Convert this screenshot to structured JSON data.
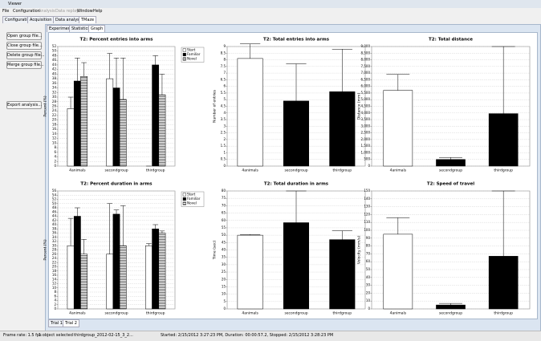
{
  "window_title": "Viewer",
  "menu": [
    "File",
    "Configuration",
    "Analysis",
    "Data replay",
    "Window",
    "Help"
  ],
  "main_tabs": [
    "Configuration",
    "Acquisition",
    "Data analysis",
    "TMaze"
  ],
  "sub_tabs": [
    "Experiment",
    "Statistics",
    "Graph"
  ],
  "buttons": [
    "Open group file...",
    "Close group file...",
    "Delete group file...",
    "Merge group file...",
    "Export analysis..."
  ],
  "trial_tabs": [
    "Trial 1",
    "Trial 2"
  ],
  "status": [
    "Frame rate: 1.5 fps",
    "1 object selected",
    "thirdgroup_2012-02-15_3_2...",
    "Started: 2/15/2012 3:27:23 PM, Duration: 00:00:57.2, Stopped: 2/15/2012 3:28:23 PM"
  ],
  "chart_data": [
    {
      "type": "bar",
      "title": "T2: Percent entries into arms",
      "y_label": "Percent (%)",
      "categories": [
        "4animals",
        "secondgroup",
        "thirdgroup"
      ],
      "series": [
        {
          "name": "Start",
          "color": "#ffffff",
          "values": [
            25,
            38,
            0
          ],
          "errors": [
            5,
            11,
            0
          ]
        },
        {
          "name": "Familiar",
          "color": "#000000",
          "values": [
            37,
            34,
            44
          ],
          "errors": [
            10,
            13,
            4
          ]
        },
        {
          "name": "Novel",
          "color": "#ffffff",
          "hatch": true,
          "values": [
            39,
            29,
            31
          ],
          "errors": [
            6,
            18,
            9
          ]
        }
      ],
      "ylim": [
        0,
        52
      ],
      "yticks": [
        0,
        2,
        4,
        6,
        8,
        10,
        12,
        14,
        16,
        18,
        20,
        22,
        24,
        26,
        28,
        30,
        32,
        34,
        36,
        38,
        40,
        42,
        44,
        46,
        48,
        50,
        52
      ],
      "grid": true,
      "legend": "outside-right"
    },
    {
      "type": "bar",
      "title": "T2: Total entries into arms",
      "y_label": "Number of entries",
      "categories": [
        "4animals",
        "secondgroup",
        "thirdgroup"
      ],
      "series": [
        {
          "colors": [
            "#ffffff",
            "#000000",
            "#000000"
          ],
          "values": [
            8.1,
            4.9,
            5.6
          ],
          "errors": [
            1.1,
            2.8,
            3.2
          ]
        }
      ],
      "ylim": [
        0,
        9
      ],
      "yticks": [
        0,
        0.5,
        1,
        1.5,
        2,
        2.5,
        3,
        3.5,
        4,
        4.5,
        5,
        5.5,
        6,
        6.5,
        7,
        7.5,
        8,
        8.5,
        9
      ],
      "grid": true
    },
    {
      "type": "bar",
      "title": "T2: Total distance",
      "y_label": "Distance (mm)",
      "categories": [
        "4animals",
        "secondgroup",
        "thirdgroup"
      ],
      "series": [
        {
          "colors": [
            "#ffffff",
            "#000000",
            "#000000"
          ],
          "values": [
            5700,
            500,
            3950
          ],
          "errors": [
            1200,
            150,
            5050
          ]
        }
      ],
      "ylim": [
        0,
        9000
      ],
      "yticks": [
        0,
        500,
        {
          "value": 1000,
          "label": "1,000"
        },
        {
          "value": 1500,
          "label": "1,500"
        },
        {
          "value": 2000,
          "label": "2,000"
        },
        {
          "value": 2500,
          "label": "2,500"
        },
        {
          "value": 3000,
          "label": "3,000"
        },
        {
          "value": 3500,
          "label": "3,500"
        },
        {
          "value": 4000,
          "label": "4,000"
        },
        {
          "value": 4500,
          "label": "4,500"
        },
        {
          "value": 5000,
          "label": "5,000"
        },
        {
          "value": 5500,
          "label": "5,500"
        },
        {
          "value": 6000,
          "label": "6,000"
        },
        {
          "value": 6500,
          "label": "6,500"
        },
        {
          "value": 7000,
          "label": "7,000"
        },
        {
          "value": 7500,
          "label": "7,500"
        },
        {
          "value": 8000,
          "label": "8,000"
        },
        {
          "value": 8500,
          "label": "8,500"
        },
        {
          "value": 9000,
          "label": "9,000"
        }
      ],
      "grid": true
    },
    {
      "type": "bar",
      "title": "T2: Percent duration in arms",
      "y_label": "Percent (%)",
      "categories": [
        "4animals",
        "secondgroup",
        "thirdgroup"
      ],
      "series": [
        {
          "name": "Start",
          "color": "#ffffff",
          "values": [
            30,
            26,
            30
          ],
          "errors": [
            13,
            24,
            1
          ]
        },
        {
          "name": "Familiar",
          "color": "#000000",
          "values": [
            44,
            45,
            38
          ],
          "errors": [
            4,
            2,
            2
          ]
        },
        {
          "name": "Novel",
          "color": "#ffffff",
          "hatch": true,
          "values": [
            26,
            30,
            36
          ],
          "errors": [
            7,
            19,
            1
          ]
        }
      ],
      "ylim": [
        0,
        56
      ],
      "yticks": [
        0,
        2,
        4,
        6,
        8,
        10,
        12,
        14,
        16,
        18,
        20,
        22,
        24,
        26,
        28,
        30,
        32,
        34,
        36,
        38,
        40,
        42,
        44,
        46,
        48,
        50,
        52,
        54,
        56
      ],
      "grid": true,
      "legend": "outside-right"
    },
    {
      "type": "bar",
      "title": "T2: Total duration in arms",
      "y_label": "Time (sec)",
      "categories": [
        "4animals",
        "secondgroup",
        "thirdgroup"
      ],
      "series": [
        {
          "colors": [
            "#ffffff",
            "#000000",
            "#000000"
          ],
          "values": [
            50,
            58.5,
            47
          ],
          "errors": [
            0.5,
            21.5,
            6
          ]
        }
      ],
      "ylim": [
        0,
        80
      ],
      "yticks": [
        0,
        5,
        10,
        15,
        20,
        25,
        30,
        35,
        40,
        45,
        50,
        55,
        60,
        65,
        70,
        75,
        80
      ],
      "grid": true
    },
    {
      "type": "bar",
      "title": "T2: Speed of travel",
      "y_label": "Velocity (mm/s)",
      "categories": [
        "4animals",
        "secondgroup",
        "thirdgroup"
      ],
      "series": [
        {
          "colors": [
            "#ffffff",
            "#000000",
            "#000000"
          ],
          "values": [
            95,
            5,
            67
          ],
          "errors": [
            21,
            2,
            83
          ]
        }
      ],
      "ylim": [
        0,
        150
      ],
      "yticks": [
        0,
        10,
        20,
        30,
        40,
        50,
        60,
        70,
        80,
        90,
        100,
        110,
        120,
        130,
        140,
        150
      ],
      "grid": true
    }
  ]
}
